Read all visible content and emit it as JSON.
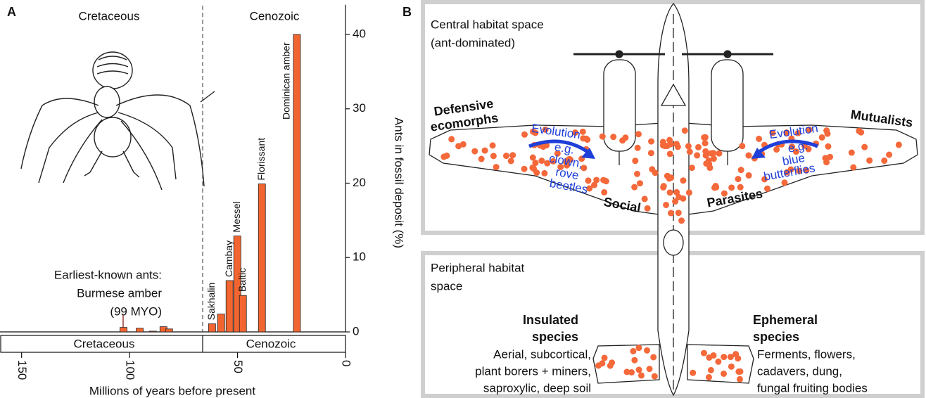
{
  "panel_labels": {
    "a": "A",
    "b": "B"
  },
  "chart_data": {
    "type": "bar",
    "x_label": "Millions of years before present",
    "y_label": "Ants in fossil deposit (%)",
    "periods": [
      "Cretaceous",
      "Cenozoic"
    ],
    "annotation": [
      "Earliest-known ants:",
      "Burmese amber",
      "(99 MYO)"
    ],
    "x": [
      102.8,
      95.3,
      89.2,
      84.3,
      81.7,
      61.8,
      57.6,
      53.7,
      50.1,
      47.5,
      38.7,
      22.5
    ],
    "values": [
      0.6,
      0.5,
      0.1,
      0.7,
      0.4,
      1.1,
      2.4,
      6.9,
      12.9,
      4.9,
      19.9,
      40
    ],
    "bar_labels": [
      null,
      null,
      null,
      null,
      null,
      "Sakhalin",
      null,
      "Cambay",
      "Messel",
      "Baltic",
      "Florissant",
      "Dominican amber"
    ],
    "color": "#f26530",
    "xlim": [
      160,
      0
    ],
    "xticks": [
      150,
      100,
      50,
      0
    ],
    "ylim": [
      0,
      44
    ],
    "yticks": [
      0,
      10,
      20,
      30,
      40
    ],
    "grid": false
  },
  "diagram": {
    "central_title": [
      "Central habitat space",
      "(ant-dominated)"
    ],
    "peripheral_title": [
      "Peripheral habitat",
      "space"
    ],
    "defensive": [
      "Defensive",
      "ecomorphs"
    ],
    "mutualists": "Mutualists",
    "social": "Social",
    "parasites": "Parasites",
    "evolution_left": [
      "Evolution",
      "e.g.",
      "clown,",
      "rove",
      "beetles"
    ],
    "evolution_right": [
      "Evolution",
      "e.g.",
      "blue",
      "butterflies"
    ],
    "insulated": {
      "title": [
        "Insulated",
        "species"
      ],
      "examples": [
        "Aerial, subcortical,",
        "plant borers + miners,",
        "saproxylic, deep soil"
      ]
    },
    "ephemeral": {
      "title": [
        "Ephemeral",
        "species"
      ],
      "examples": [
        "Ferments, flowers,",
        "cadavers, dung,",
        "fungal fruiting bodies"
      ]
    }
  }
}
